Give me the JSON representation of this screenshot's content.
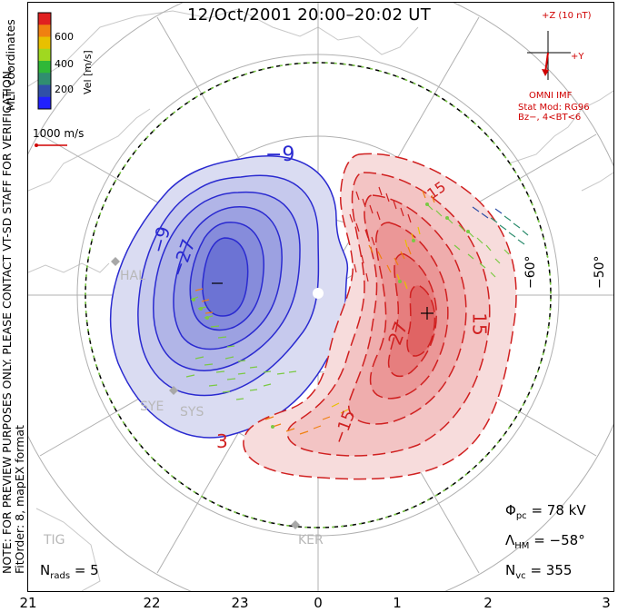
{
  "title": "12/Oct/2001 20:00–20:02 UT",
  "side_note": {
    "line1": "NOTE: FOR PREVIEW PURPOSES ONLY. PLEASE CONTACT VT-SD STAFF FOR VERIFICATION.",
    "line2": "FitOrder: 8, mapEX format"
  },
  "coords_label": "MLT coordinates",
  "colorbar": {
    "title": "Vel [m/s]",
    "ticks": [
      "600",
      "400",
      "200"
    ],
    "colors": [
      "#e02020",
      "#f08010",
      "#e8c000",
      "#a0d820",
      "#30b838",
      "#308e70",
      "#3050a8",
      "#2020ff"
    ]
  },
  "ref_vector": {
    "label": "1000 m/s",
    "color": "#d00000"
  },
  "imf": {
    "top": "+Z (10 nT)",
    "right": "+Y",
    "source": "OMNI IMF",
    "model": "Stat Mod: RG96",
    "condition": "Bz−, 4<BT<6",
    "color": "#d00000"
  },
  "stats": {
    "phi_sym": "Φ",
    "phi_sub": "pc",
    "phi_val": "= 78 kV",
    "lam_sym": "Λ",
    "lam_sub": "HM",
    "lam_val": "= −58°",
    "nvc_sym": "N",
    "nvc_sub": "vc",
    "nvc_val": "= 355",
    "nrads_sym": "N",
    "nrads_sub": "rads",
    "nrads_val": "= 5"
  },
  "mlt_ticks": [
    "21",
    "22",
    "23",
    "0",
    "1",
    "2",
    "3"
  ],
  "lat_labels": [
    "−60°",
    "−50°"
  ],
  "radars": [
    "HAL",
    "SYE",
    "SYS",
    "KER",
    "TIG"
  ],
  "contour_labels": [
    "−9",
    "−9",
    "−27",
    "3",
    "15",
    "−15",
    "27",
    "15",
    "3"
  ],
  "colors": {
    "negative": "#2a2ad0",
    "positive": "#d02020",
    "hm_boundary": "#7ac943"
  }
}
